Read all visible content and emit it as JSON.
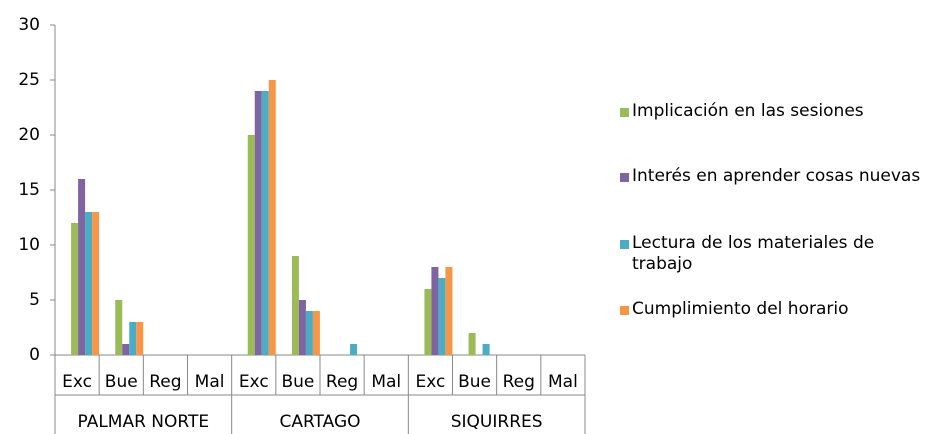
{
  "chart_data": {
    "type": "bar",
    "categories": [
      "Exc",
      "Bue",
      "Reg",
      "Mal",
      "Exc",
      "Bue",
      "Reg",
      "Mal",
      "Exc",
      "Bue",
      "Reg",
      "Mal"
    ],
    "groups": [
      "PALMAR NORTE",
      "CARTAGO",
      "SIQUIRRES"
    ],
    "series": [
      {
        "name": "Implicación en las sesiones",
        "color": "#9bbb59",
        "values": [
          12,
          5,
          0,
          0,
          20,
          9,
          0,
          0,
          6,
          2,
          0,
          0
        ]
      },
      {
        "name": "Interés en aprender cosas nuevas",
        "color": "#8064a2",
        "values": [
          16,
          1,
          0,
          0,
          24,
          5,
          0,
          0,
          8,
          0,
          0,
          0
        ]
      },
      {
        "name": "Lectura de los materiales de trabajo",
        "color": "#4bacc6",
        "values": [
          13,
          3,
          0,
          0,
          24,
          4,
          1,
          0,
          7,
          1,
          0,
          0
        ]
      },
      {
        "name": "Cumplimiento del horario",
        "color": "#f79646",
        "values": [
          13,
          3,
          0,
          0,
          25,
          4,
          0,
          0,
          8,
          0,
          0,
          0
        ]
      }
    ],
    "ylim": [
      0,
      30
    ],
    "yticks": [
      0,
      5,
      10,
      15,
      20,
      25,
      30
    ],
    "grid": false,
    "legend": "right"
  }
}
